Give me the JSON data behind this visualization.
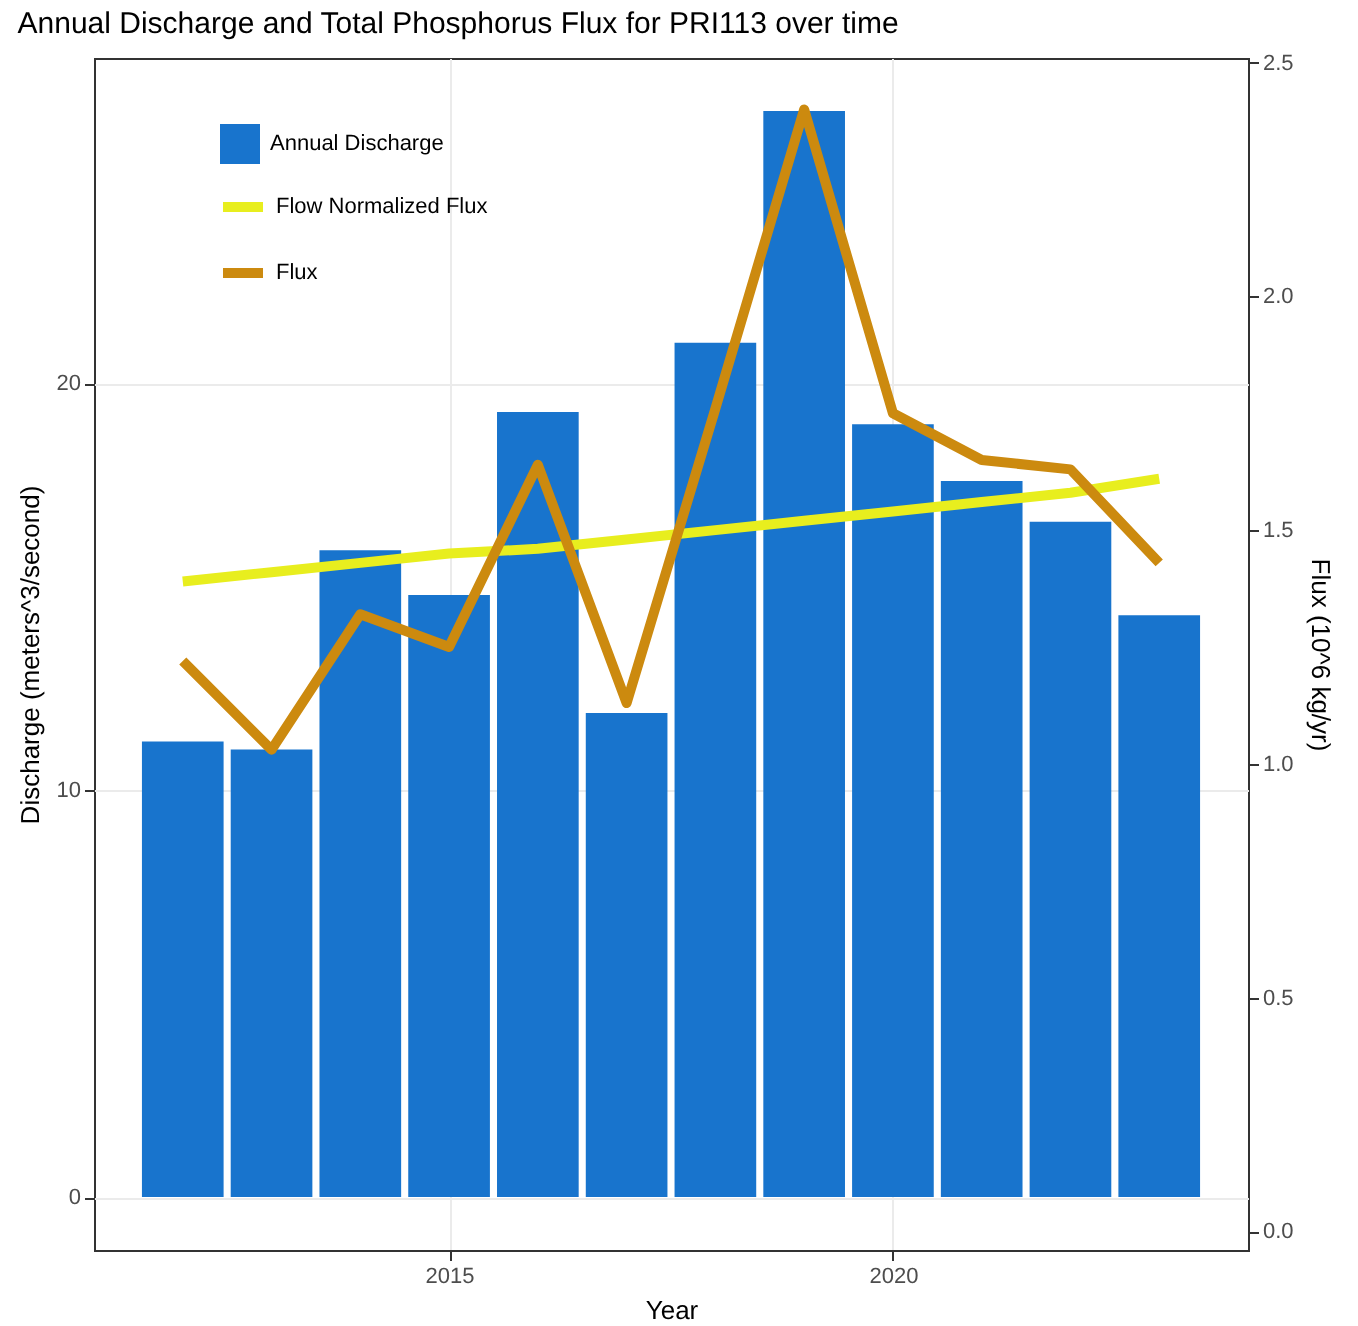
{
  "chart_data": {
    "type": "bar",
    "title": "Annual Discharge and Total Phosphorus Flux for PRI113 over time",
    "xlabel": "Year",
    "ylabel": "Discharge (meters^3/second)",
    "y2label": "Flux (10^6 kg/yr)",
    "x": [
      2012,
      2013,
      2014,
      2015,
      2016,
      2017,
      2018,
      2019,
      2020,
      2021,
      2022,
      2023
    ],
    "series": [
      {
        "name": "Annual Discharge",
        "color": "#1874cd",
        "values": [
          11.2,
          11.0,
          15.9,
          14.8,
          19.3,
          11.9,
          21.0,
          26.7,
          19.0,
          17.6,
          16.6,
          14.3
        ]
      },
      {
        "name": "Flow Normalized Flux",
        "type": "line",
        "axis": "y2",
        "color": "#e8ee1e",
        "values": [
          1.39,
          1.41,
          1.43,
          1.45,
          1.46,
          1.48,
          1.5,
          1.52,
          1.54,
          1.56,
          1.58,
          1.61
        ]
      },
      {
        "name": "Flux",
        "type": "line",
        "axis": "y2",
        "color": "#cc8a0f",
        "values": [
          1.22,
          1.03,
          1.32,
          1.25,
          1.64,
          1.13,
          1.76,
          2.4,
          1.75,
          1.65,
          1.63,
          1.43
        ]
      }
    ],
    "xlim": [
      2011,
      2024
    ],
    "xticks": [
      2015,
      2020
    ],
    "ylim": [
      -1.3,
      28.0
    ],
    "yticks": [
      0,
      10,
      20
    ],
    "y2lim": [
      -0.04,
      2.51
    ],
    "y2ticks": [
      {
        "value": 0,
        "label": "0.0"
      },
      0.5,
      {
        "value": 1,
        "label": "1.0"
      },
      1.5,
      {
        "value": 2,
        "label": "2.0"
      },
      2.5
    ],
    "grid": true,
    "legend": "top left",
    "line_style": "solid",
    "marker": "none"
  }
}
